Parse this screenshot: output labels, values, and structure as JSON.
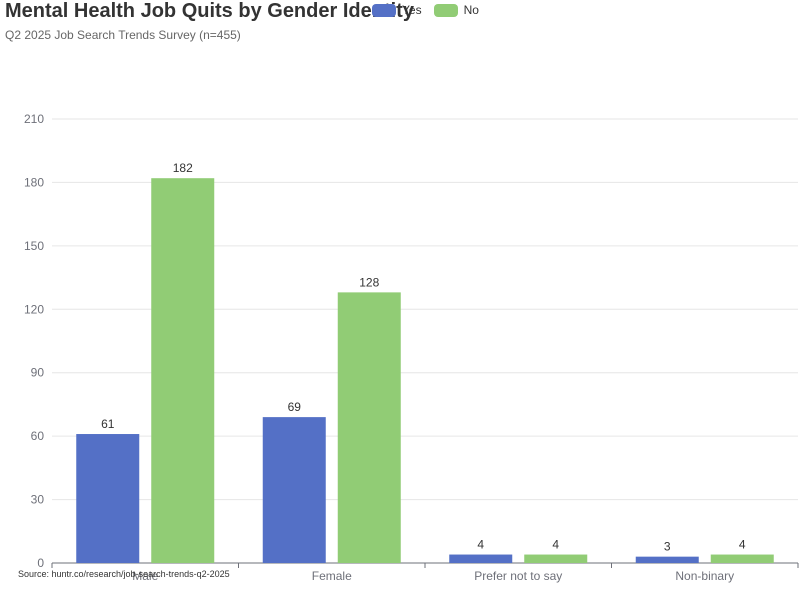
{
  "header": {
    "title": "Mental Health Job Quits by Gender Identity",
    "subtitle": "Q2 2025 Job Search Trends Survey (n=455)"
  },
  "footer": {
    "source": "Source: huntr.co/research/job-search-trends-q2-2025"
  },
  "colors": {
    "yes": "#5470c6",
    "no": "#91cc75"
  },
  "chart_data": {
    "type": "bar",
    "title": "Mental Health Job Quits by Gender Identity",
    "subtitle": "Q2 2025 Job Search Trends Survey (n=455)",
    "categories": [
      "Male",
      "Female",
      "Prefer not to say",
      "Non-binary"
    ],
    "series": [
      {
        "name": "Yes",
        "values": [
          61,
          69,
          4,
          3
        ]
      },
      {
        "name": "No",
        "values": [
          182,
          128,
          4,
          4
        ]
      }
    ],
    "ylim": [
      0,
      210
    ],
    "yticks": [
      0,
      30,
      60,
      90,
      120,
      150,
      180,
      210
    ],
    "grid": true,
    "legend_position": "top",
    "data_labels": true
  }
}
